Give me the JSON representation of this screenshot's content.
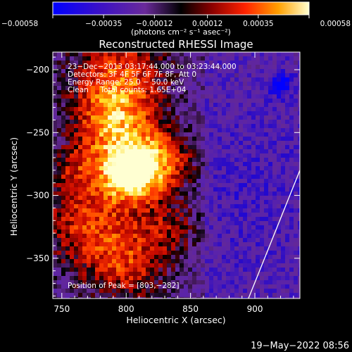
{
  "chart_data": {
    "type": "heatmap",
    "title": "Reconstructed RHESSI Image",
    "xlabel": "Heliocentric X (arcsec)",
    "ylabel": "Heliocentric Y (arcsec)",
    "xlim": [
      743,
      935
    ],
    "ylim": [
      -382,
      -186
    ],
    "x_ticks": [
      750,
      800,
      850,
      900
    ],
    "x_tick_labels": [
      "750",
      "800",
      "850",
      "900"
    ],
    "y_ticks": [
      -200,
      -250,
      -300,
      -350
    ],
    "y_tick_labels": [
      "−200",
      "−250",
      "−300",
      "−350"
    ],
    "colorbar": {
      "range": [
        -0.00058,
        0.00058
      ],
      "ticks": [
        -0.00058,
        -0.00035,
        -0.00012,
        0.00012,
        0.00035,
        0.00058
      ],
      "tick_labels": [
        "−0.00058",
        "−0.00035",
        "−0.00012",
        "0.00012",
        "0.00035",
        "0.00058"
      ],
      "unit_label": "(photons cm⁻² s⁻¹ asec⁻²)"
    },
    "peak": [
      803,
      -282
    ],
    "annotations": [
      "23−Dec−2013 03:17:44.000 to 03:23:44.000",
      "Detectors: 3F 4F 5F 6F 7F 8F, Att 0",
      "Energy Range: 25.0 − 50.0 keV",
      "Clean     Total counts: 1.65E+04"
    ],
    "peak_label": "Position of Peak = [803,−282]",
    "limb_line": [
      [
        895,
        -382
      ],
      [
        935,
        -280
      ]
    ]
  },
  "footer": {
    "date_stamp": "19−May−2022 08:56"
  }
}
